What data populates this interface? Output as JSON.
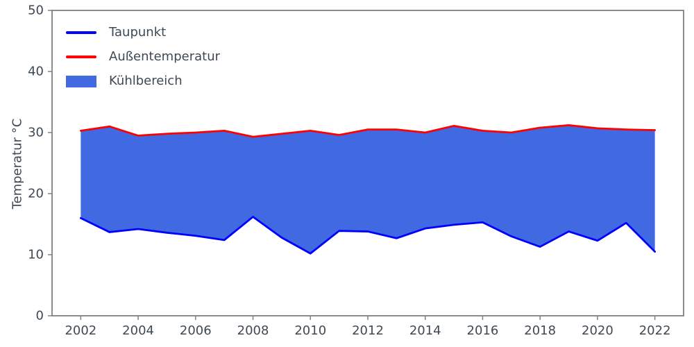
{
  "chart_data": {
    "type": "area",
    "title": "",
    "xlabel": "",
    "ylabel": "Temperatur °C",
    "x": [
      2002,
      2003,
      2004,
      2005,
      2006,
      2007,
      2008,
      2009,
      2010,
      2011,
      2012,
      2013,
      2014,
      2015,
      2016,
      2017,
      2018,
      2019,
      2020,
      2021,
      2022
    ],
    "series": [
      {
        "name": "Taupunkt",
        "color": "#0000ff",
        "values": [
          16.0,
          13.7,
          14.2,
          13.6,
          13.1,
          12.4,
          16.2,
          12.8,
          10.2,
          13.9,
          13.8,
          12.7,
          14.3,
          14.9,
          15.3,
          13.0,
          11.3,
          13.8,
          12.3,
          15.2,
          10.5
        ]
      },
      {
        "name": "Außentemperatur",
        "color": "#ff0000",
        "values": [
          30.3,
          31.0,
          29.5,
          29.8,
          30.0,
          30.3,
          29.3,
          29.8,
          30.3,
          29.6,
          30.5,
          30.5,
          30.0,
          31.1,
          30.3,
          30.0,
          30.8,
          31.2,
          30.7,
          30.5,
          30.4
        ]
      }
    ],
    "fill": {
      "name": "Kühlbereich",
      "color": "#4169e1",
      "between": [
        "Taupunkt",
        "Außentemperatur"
      ]
    },
    "ylim": [
      0,
      50
    ],
    "xticks": [
      2002,
      2004,
      2006,
      2008,
      2010,
      2012,
      2014,
      2016,
      2018,
      2020,
      2022
    ],
    "yticks": [
      0,
      10,
      20,
      30,
      40,
      50
    ],
    "legend_position": "upper left",
    "grid": false,
    "colors": {
      "spine": "#7f7f7f",
      "text": "#3e4953"
    }
  }
}
